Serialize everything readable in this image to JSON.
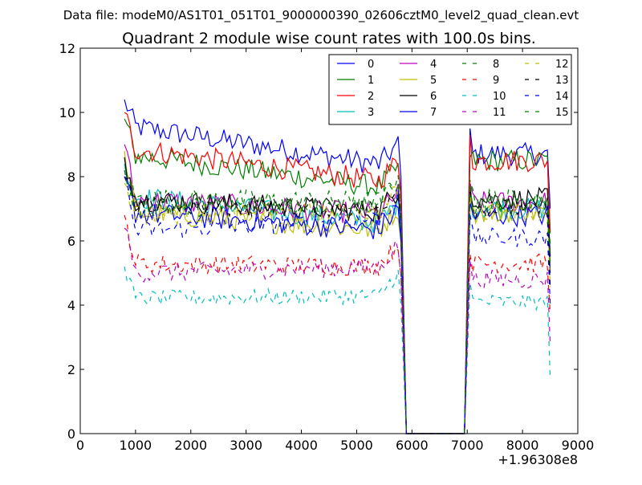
{
  "chart_data": {
    "type": "line",
    "suptitle": "Data file: modeM0/AS1T01_051T01_9000000390_02606cztM0_level2_quad_clean.evt",
    "title": "Quadrant 2 module wise count rates with 100.0s bins.",
    "xlabel": "",
    "ylabel": "",
    "xlim": [
      0,
      9000
    ],
    "ylim": [
      0,
      12
    ],
    "x_offset_label": "+1.96308e8",
    "x_ticks": [
      0,
      1000,
      2000,
      3000,
      4000,
      5000,
      6000,
      7000,
      8000,
      9000
    ],
    "x_tick_labels": [
      "0",
      "1000",
      "2000",
      "3000",
      "4000",
      "5000",
      "6000",
      "7000",
      "8000",
      "9000"
    ],
    "y_ticks": [
      0,
      2,
      4,
      6,
      8,
      10,
      12
    ],
    "y_tick_labels": [
      "0",
      "2",
      "4",
      "6",
      "8",
      "10",
      "12"
    ],
    "legend_position": "top-right",
    "legend_columns": 4,
    "gap_x": [
      5950,
      6950
    ],
    "segment_1_x": [
      800,
      5750
    ],
    "segment_2_x": [
      7050,
      8500
    ],
    "series": [
      {
        "name": "0",
        "color": "#0000ff",
        "dash": "solid",
        "base1": 9.6,
        "end1": 8.3,
        "start1": 10.4,
        "base2": 8.7,
        "start2": 9.5,
        "noise": 0.35
      },
      {
        "name": "1",
        "color": "#008000",
        "dash": "solid",
        "base1": 8.7,
        "end1": 7.6,
        "start1": 9.8,
        "base2": 8.5,
        "start2": 8.6,
        "noise": 0.35
      },
      {
        "name": "2",
        "color": "#ff0000",
        "dash": "solid",
        "base1": 8.9,
        "end1": 7.8,
        "start1": 10.0,
        "base2": 8.5,
        "start2": 9.3,
        "noise": 0.35
      },
      {
        "name": "3",
        "color": "#00bfbf",
        "dash": "solid",
        "base1": 7.4,
        "end1": 6.5,
        "start1": 8.4,
        "base2": 7.0,
        "start2": 7.6,
        "noise": 0.35
      },
      {
        "name": "4",
        "color": "#bf00bf",
        "dash": "solid",
        "base1": 7.3,
        "end1": 6.8,
        "start1": 9.0,
        "base2": 7.2,
        "start2": 7.8,
        "noise": 0.35
      },
      {
        "name": "5",
        "color": "#bfbf00",
        "dash": "solid",
        "base1": 6.9,
        "end1": 6.3,
        "start1": 8.8,
        "base2": 6.9,
        "start2": 7.3,
        "noise": 0.35
      },
      {
        "name": "6",
        "color": "#000000",
        "dash": "solid",
        "base1": 7.3,
        "end1": 6.9,
        "start1": 8.6,
        "base2": 7.3,
        "start2": 7.6,
        "noise": 0.35
      },
      {
        "name": "7",
        "color": "#0000ff",
        "dash": "solid",
        "base1": 6.9,
        "end1": 6.3,
        "start1": 8.0,
        "base2": 6.8,
        "start2": 7.2,
        "noise": 0.35
      },
      {
        "name": "8",
        "color": "#008000",
        "dash": "dashed",
        "base1": 7.3,
        "end1": 7.2,
        "start1": 8.0,
        "base2": 7.3,
        "start2": 7.8,
        "noise": 0.35
      },
      {
        "name": "9",
        "color": "#ff0000",
        "dash": "dashed",
        "base1": 5.3,
        "end1": 5.2,
        "start1": 6.8,
        "base2": 5.3,
        "start2": 5.6,
        "noise": 0.3
      },
      {
        "name": "10",
        "color": "#00bfbf",
        "dash": "dashed",
        "base1": 4.2,
        "end1": 4.3,
        "start1": 5.2,
        "base2": 4.1,
        "start2": 4.7,
        "noise": 0.25
      },
      {
        "name": "11",
        "color": "#bf00bf",
        "dash": "dashed",
        "base1": 5.0,
        "end1": 5.2,
        "start1": 6.4,
        "base2": 4.8,
        "start2": 5.4,
        "noise": 0.3
      },
      {
        "name": "12",
        "color": "#bfbf00",
        "dash": "dashed",
        "base1": 6.8,
        "end1": 6.9,
        "start1": 7.8,
        "base2": 6.9,
        "start2": 7.4,
        "noise": 0.3
      },
      {
        "name": "13",
        "color": "#000000",
        "dash": "dashed",
        "base1": 7.1,
        "end1": 7.0,
        "start1": 8.0,
        "base2": 7.0,
        "start2": 7.7,
        "noise": 0.3
      },
      {
        "name": "14",
        "color": "#0000ff",
        "dash": "dashed",
        "base1": 6.3,
        "end1": 6.7,
        "start1": 8.0,
        "base2": 6.1,
        "start2": 6.8,
        "noise": 0.3
      },
      {
        "name": "15",
        "color": "#008000",
        "dash": "dashed",
        "base1": 7.0,
        "end1": 7.2,
        "start1": 8.2,
        "base2": 7.1,
        "start2": 7.9,
        "noise": 0.3
      }
    ]
  }
}
